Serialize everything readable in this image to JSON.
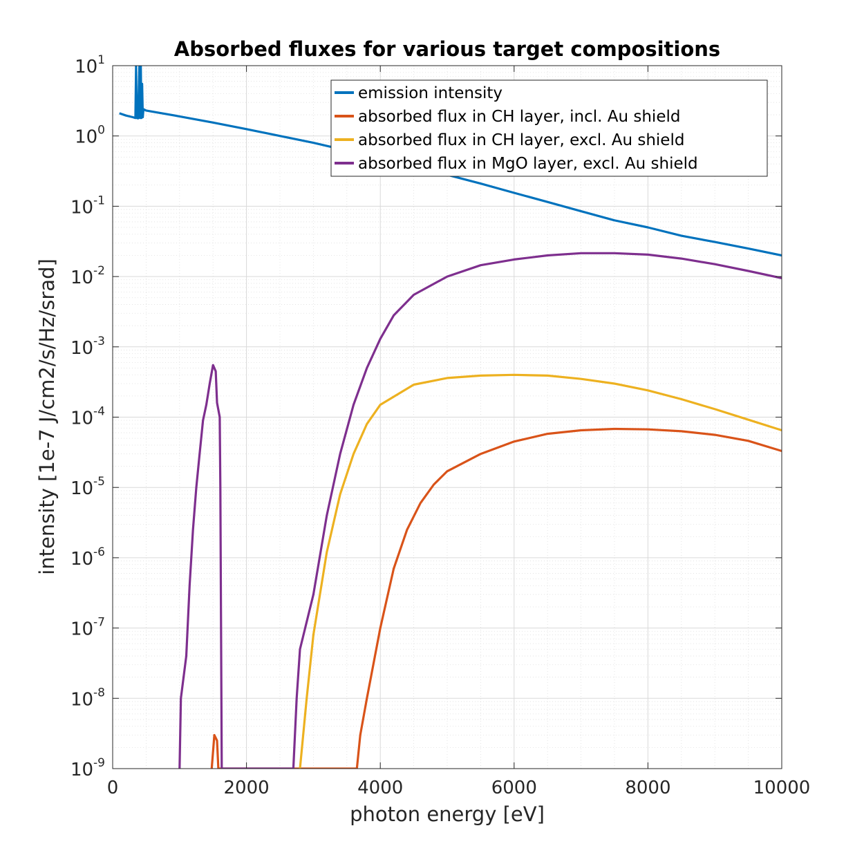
{
  "chart_data": {
    "type": "line",
    "title": "Absorbed fluxes for various target compositions",
    "xlabel": "photon energy [eV]",
    "ylabel": "intensity [1e-7 J/cm2/s/Hz/srad]",
    "xlim": [
      0,
      10000
    ],
    "ylim": [
      1e-09,
      10
    ],
    "yscale": "log",
    "grid": true,
    "minor_grid": true,
    "legend_position": "top-right",
    "x_ticks": [
      {
        "value": 0,
        "label": "0"
      },
      {
        "value": 2000,
        "label": "2000"
      },
      {
        "value": 4000,
        "label": "4000"
      },
      {
        "value": 6000,
        "label": "6000"
      },
      {
        "value": 8000,
        "label": "8000"
      },
      {
        "value": 10000,
        "label": "10000"
      }
    ],
    "y_ticks": [
      {
        "value": 10,
        "base": "10",
        "exp": "1"
      },
      {
        "value": 1,
        "base": "10",
        "exp": "0"
      },
      {
        "value": 0.1,
        "base": "10",
        "exp": "-1"
      },
      {
        "value": 0.01,
        "base": "10",
        "exp": "-2"
      },
      {
        "value": 0.001,
        "base": "10",
        "exp": "-3"
      },
      {
        "value": 0.0001,
        "base": "10",
        "exp": "-4"
      },
      {
        "value": 1e-05,
        "base": "10",
        "exp": "-5"
      },
      {
        "value": 1e-06,
        "base": "10",
        "exp": "-6"
      },
      {
        "value": 1e-07,
        "base": "10",
        "exp": "-7"
      },
      {
        "value": 1e-08,
        "base": "10",
        "exp": "-8"
      },
      {
        "value": 1e-09,
        "base": "10",
        "exp": "-9"
      }
    ],
    "series": [
      {
        "name": "emission intensity",
        "color": "#0072BD",
        "points": [
          [
            100,
            2.1
          ],
          [
            200,
            1.95
          ],
          [
            300,
            1.85
          ],
          [
            340,
            1.8
          ],
          [
            350,
            10
          ],
          [
            360,
            1.8
          ],
          [
            380,
            1.78
          ],
          [
            400,
            10
          ],
          [
            410,
            1.8
          ],
          [
            420,
            10
          ],
          [
            430,
            1.8
          ],
          [
            440,
            5.5
          ],
          [
            450,
            1.85
          ],
          [
            460,
            2.4
          ],
          [
            500,
            2.3
          ],
          [
            1000,
            1.9
          ],
          [
            1500,
            1.55
          ],
          [
            2000,
            1.25
          ],
          [
            2500,
            1.0
          ],
          [
            3000,
            0.8
          ],
          [
            3500,
            0.62
          ],
          [
            4000,
            0.48
          ],
          [
            4500,
            0.37
          ],
          [
            5000,
            0.28
          ],
          [
            5500,
            0.21
          ],
          [
            6000,
            0.155
          ],
          [
            6500,
            0.115
          ],
          [
            7000,
            0.085
          ],
          [
            7500,
            0.063
          ],
          [
            8000,
            0.05
          ],
          [
            8500,
            0.038
          ],
          [
            9000,
            0.031
          ],
          [
            9500,
            0.025
          ],
          [
            10000,
            0.02
          ]
        ]
      },
      {
        "name": "absorbed flux in CH layer, incl. Au shield",
        "color": "#D95319",
        "points": [
          [
            1480,
            1e-09
          ],
          [
            1520,
            3e-09
          ],
          [
            1560,
            2.5e-09
          ],
          [
            1580,
            1e-09
          ],
          [
            3650,
            1e-09
          ],
          [
            3700,
            3e-09
          ],
          [
            3800,
            1e-08
          ],
          [
            4000,
            1e-07
          ],
          [
            4200,
            7e-07
          ],
          [
            4400,
            2.5e-06
          ],
          [
            4600,
            6e-06
          ],
          [
            4800,
            1.1e-05
          ],
          [
            5000,
            1.7e-05
          ],
          [
            5500,
            3e-05
          ],
          [
            6000,
            4.5e-05
          ],
          [
            6500,
            5.8e-05
          ],
          [
            7000,
            6.5e-05
          ],
          [
            7500,
            6.8e-05
          ],
          [
            8000,
            6.7e-05
          ],
          [
            8500,
            6.3e-05
          ],
          [
            9000,
            5.6e-05
          ],
          [
            9500,
            4.6e-05
          ],
          [
            10000,
            3.3e-05
          ]
        ]
      },
      {
        "name": "absorbed flux in CH layer, excl. Au shield",
        "color": "#EDB120",
        "points": [
          [
            2800,
            1e-09
          ],
          [
            2900,
            1e-08
          ],
          [
            3000,
            8e-08
          ],
          [
            3200,
            1.2e-06
          ],
          [
            3400,
            8e-06
          ],
          [
            3600,
            3e-05
          ],
          [
            3800,
            8e-05
          ],
          [
            4000,
            0.00015
          ],
          [
            4500,
            0.00029
          ],
          [
            5000,
            0.00036
          ],
          [
            5500,
            0.00039
          ],
          [
            6000,
            0.0004
          ],
          [
            6500,
            0.00039
          ],
          [
            7000,
            0.00035
          ],
          [
            7500,
            0.0003
          ],
          [
            8000,
            0.00024
          ],
          [
            8500,
            0.00018
          ],
          [
            9000,
            0.00013
          ],
          [
            9500,
            9.2e-05
          ],
          [
            10000,
            6.5e-05
          ]
        ]
      },
      {
        "name": "absorbed flux in MgO layer, excl. Au shield",
        "color": "#7E2F8E",
        "points": [
          [
            1000,
            1e-09
          ],
          [
            1020,
            1e-08
          ],
          [
            1100,
            4e-08
          ],
          [
            1150,
            4e-07
          ],
          [
            1200,
            2.5e-06
          ],
          [
            1250,
            1e-05
          ],
          [
            1300,
            3e-05
          ],
          [
            1350,
            9e-05
          ],
          [
            1400,
            0.00015
          ],
          [
            1450,
            0.0003
          ],
          [
            1500,
            0.00055
          ],
          [
            1540,
            0.00045
          ],
          [
            1560,
            0.00016
          ],
          [
            1600,
            0.0001
          ],
          [
            1610,
            1e-05
          ],
          [
            1620,
            1e-07
          ],
          [
            1630,
            1e-09
          ],
          [
            2700,
            1e-09
          ],
          [
            2750,
            1e-08
          ],
          [
            2800,
            5e-08
          ],
          [
            3000,
            3e-07
          ],
          [
            3200,
            4e-06
          ],
          [
            3400,
            3e-05
          ],
          [
            3600,
            0.00015
          ],
          [
            3800,
            0.0005
          ],
          [
            4000,
            0.0013
          ],
          [
            4200,
            0.0028
          ],
          [
            4500,
            0.0055
          ],
          [
            5000,
            0.01
          ],
          [
            5500,
            0.0145
          ],
          [
            6000,
            0.0175
          ],
          [
            6500,
            0.02
          ],
          [
            7000,
            0.0215
          ],
          [
            7500,
            0.0215
          ],
          [
            8000,
            0.0205
          ],
          [
            8500,
            0.018
          ],
          [
            9000,
            0.015
          ],
          [
            9500,
            0.012
          ],
          [
            10000,
            0.0095
          ]
        ]
      }
    ]
  }
}
